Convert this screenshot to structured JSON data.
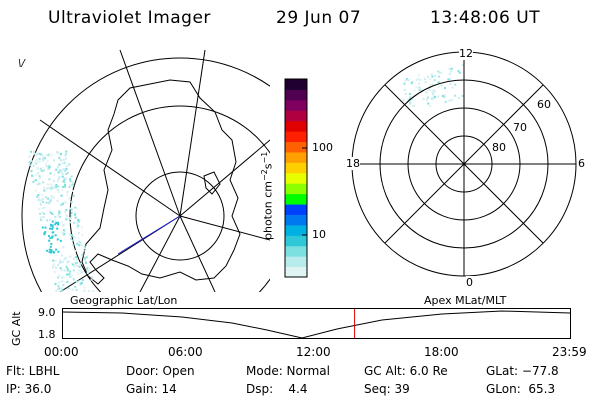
{
  "header": {
    "title": "Ultraviolet Imager",
    "date": "29 Jun 07",
    "time": "13:48:06 UT"
  },
  "colorbar": {
    "unit_label": "photon cm",
    "unit_exp1": "−2",
    "unit_s": "s",
    "unit_exp2": "−1",
    "ticks": [
      "100",
      "10"
    ],
    "colors": [
      "#e0f4f4",
      "#b8ecec",
      "#7de0e0",
      "#2ec8d8",
      "#00b0e0",
      "#0078f0",
      "#0040ff",
      "#00ff00",
      "#8cff00",
      "#e8ff00",
      "#ffd000",
      "#ffa000",
      "#ff6000",
      "#ff2000",
      "#e00000",
      "#b00040",
      "#800060",
      "#500050",
      "#200030"
    ]
  },
  "geo_map": {
    "corner_mark": "\\/"
  },
  "polar_plot": {
    "labels": {
      "top": "12",
      "bottom": "0",
      "left": "18",
      "right": "6"
    },
    "rings": [
      "60",
      "70",
      "80"
    ]
  },
  "timeline": {
    "left_label": "Geographic Lat/Lon",
    "right_label": "Apex MLat/MLT",
    "axis_title": "GC Alt",
    "y_top": "9.0",
    "y_bottom": "1.8",
    "x_ticks": [
      "00:00",
      "06:00",
      "12:00",
      "18:00",
      "23:59"
    ],
    "current_time_fraction": 0.5751
  },
  "info": {
    "filter": "Flt: LBHL",
    "door": "Door: Open",
    "mode": "Mode: Normal",
    "gc_alt": "GC Alt: 6.0 Re",
    "glat": "GLat: −77.8",
    "ip": "IP: 36.0",
    "gain": "Gain: 14",
    "dsp": "Dsp:    4.4",
    "seq": "Seq: 39",
    "glon": "GLon:  65.3"
  }
}
